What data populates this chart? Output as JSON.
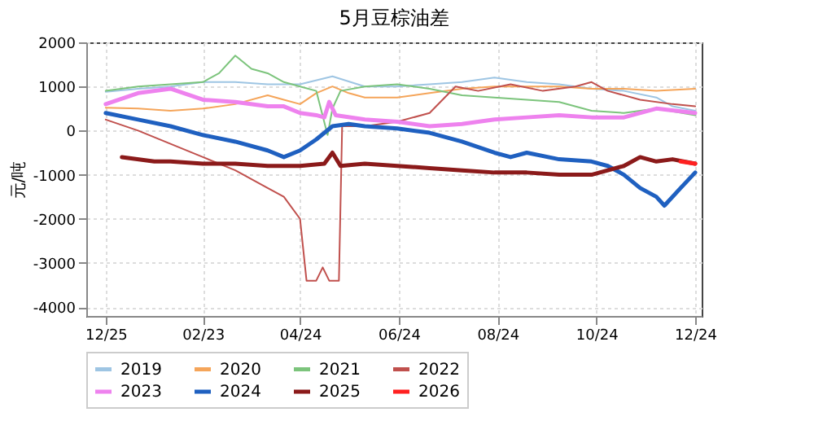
{
  "chart_data": {
    "type": "line",
    "title": "5月豆棕油差",
    "ylabel": "元/吨",
    "xlim": [
      "2024-12-13",
      "2025-12-28"
    ],
    "xticks": [
      {
        "value": "2024-12-25",
        "label": "12/25"
      },
      {
        "value": "2025-02-23",
        "label": "02/23"
      },
      {
        "value": "2025-04-24",
        "label": "04/24"
      },
      {
        "value": "2025-06-24",
        "label": "06/24"
      },
      {
        "value": "2025-08-24",
        "label": "08/24"
      },
      {
        "value": "2025-10-24",
        "label": "10/24"
      },
      {
        "value": "2025-12-24",
        "label": "12/24"
      }
    ],
    "ylim": [
      -4200,
      2000
    ],
    "yticks": [
      -4000,
      -3000,
      -2000,
      -1000,
      0,
      1000,
      2000
    ],
    "grid": true,
    "legend": "bottom",
    "line_style": "solid",
    "marker": "none",
    "series": [
      {
        "name": "2019",
        "color": "#9ec5e3",
        "x": [
          "2024-12-25",
          "2025-01-14",
          "2025-02-03",
          "2025-02-23",
          "2025-03-15",
          "2025-04-04",
          "2025-04-24",
          "2025-05-14",
          "2025-06-03",
          "2025-06-23",
          "2025-07-13",
          "2025-08-02",
          "2025-08-22",
          "2025-09-11",
          "2025-10-01",
          "2025-10-21",
          "2025-11-10",
          "2025-11-30",
          "2025-12-10",
          "2025-12-24"
        ],
        "values": [
          880,
          950,
          1000,
          1100,
          1100,
          1050,
          1050,
          1230,
          1000,
          1000,
          1050,
          1100,
          1200,
          1100,
          1050,
          950,
          900,
          750,
          550,
          450
        ]
      },
      {
        "name": "2020",
        "color": "#f5a55a",
        "x": [
          "2024-12-25",
          "2025-01-14",
          "2025-02-03",
          "2025-02-23",
          "2025-03-15",
          "2025-04-04",
          "2025-04-14",
          "2025-04-24",
          "2025-05-04",
          "2025-05-14",
          "2025-05-24",
          "2025-06-03",
          "2025-06-23",
          "2025-07-13",
          "2025-08-02",
          "2025-08-22",
          "2025-09-11",
          "2025-10-01",
          "2025-10-21",
          "2025-11-10",
          "2025-11-30",
          "2025-12-24"
        ],
        "values": [
          520,
          500,
          450,
          500,
          600,
          800,
          700,
          600,
          850,
          1000,
          850,
          750,
          750,
          850,
          950,
          1000,
          1000,
          1000,
          950,
          950,
          900,
          950
        ]
      },
      {
        "name": "2021",
        "color": "#7cc47c",
        "x": [
          "2024-12-25",
          "2025-01-14",
          "2025-02-03",
          "2025-02-23",
          "2025-03-05",
          "2025-03-15",
          "2025-03-25",
          "2025-04-04",
          "2025-04-14",
          "2025-04-24",
          "2025-05-04",
          "2025-05-11",
          "2025-05-14",
          "2025-05-19",
          "2025-06-03",
          "2025-06-23",
          "2025-07-13",
          "2025-08-02",
          "2025-08-22",
          "2025-09-11",
          "2025-10-01",
          "2025-10-21",
          "2025-11-10",
          "2025-11-30",
          "2025-12-24"
        ],
        "values": [
          900,
          1000,
          1050,
          1100,
          1300,
          1700,
          1400,
          1300,
          1100,
          1000,
          900,
          -100,
          500,
          900,
          1000,
          1050,
          950,
          800,
          750,
          700,
          650,
          450,
          400,
          500,
          350
        ]
      },
      {
        "name": "2022",
        "color": "#c0504d",
        "x": [
          "2024-12-25",
          "2025-01-14",
          "2025-02-03",
          "2025-02-23",
          "2025-03-15",
          "2025-04-04",
          "2025-04-14",
          "2025-04-24",
          "2025-04-28",
          "2025-05-04",
          "2025-05-08",
          "2025-05-12",
          "2025-05-18",
          "2025-05-20",
          "2025-06-03",
          "2025-06-23",
          "2025-07-13",
          "2025-07-29",
          "2025-08-12",
          "2025-09-01",
          "2025-09-21",
          "2025-10-11",
          "2025-10-21",
          "2025-10-31",
          "2025-11-20",
          "2025-12-10",
          "2025-12-24"
        ],
        "values": [
          250,
          0,
          -300,
          -600,
          -900,
          -1300,
          -1500,
          -2000,
          -3400,
          -3400,
          -3100,
          -3400,
          -3400,
          100,
          100,
          200,
          400,
          1000,
          900,
          1050,
          900,
          1000,
          1100,
          900,
          700,
          600,
          550
        ]
      },
      {
        "name": "2023",
        "color": "#ee82ee",
        "x": [
          "2024-12-25",
          "2025-01-14",
          "2025-02-03",
          "2025-02-23",
          "2025-03-15",
          "2025-04-04",
          "2025-04-14",
          "2025-04-24",
          "2025-05-04",
          "2025-05-09",
          "2025-05-12",
          "2025-05-16",
          "2025-06-03",
          "2025-06-23",
          "2025-07-13",
          "2025-08-02",
          "2025-08-22",
          "2025-09-11",
          "2025-10-01",
          "2025-10-21",
          "2025-11-10",
          "2025-11-30",
          "2025-12-24"
        ],
        "values": [
          600,
          850,
          950,
          700,
          650,
          550,
          550,
          400,
          350,
          300,
          650,
          350,
          250,
          200,
          100,
          150,
          250,
          300,
          350,
          300,
          300,
          500,
          400
        ]
      },
      {
        "name": "2024",
        "color": "#1f60c0",
        "x": [
          "2024-12-25",
          "2025-01-14",
          "2025-02-03",
          "2025-02-23",
          "2025-03-15",
          "2025-04-04",
          "2025-04-14",
          "2025-04-24",
          "2025-05-04",
          "2025-05-14",
          "2025-05-24",
          "2025-06-03",
          "2025-06-23",
          "2025-07-13",
          "2025-08-02",
          "2025-08-22",
          "2025-09-01",
          "2025-09-11",
          "2025-10-01",
          "2025-10-21",
          "2025-10-31",
          "2025-11-10",
          "2025-11-20",
          "2025-11-30",
          "2025-12-05",
          "2025-12-15",
          "2025-12-24"
        ],
        "values": [
          400,
          250,
          100,
          -100,
          -250,
          -450,
          -600,
          -450,
          -200,
          100,
          150,
          100,
          50,
          -50,
          -250,
          -500,
          -600,
          -500,
          -650,
          -700,
          -800,
          -1000,
          -1300,
          -1500,
          -1700,
          -1300,
          -950
        ]
      },
      {
        "name": "2025",
        "color": "#8b1a1a",
        "x": [
          "2025-01-04",
          "2025-01-24",
          "2025-02-03",
          "2025-02-23",
          "2025-03-15",
          "2025-04-04",
          "2025-04-24",
          "2025-05-09",
          "2025-05-14",
          "2025-05-19",
          "2025-06-03",
          "2025-06-23",
          "2025-07-13",
          "2025-08-02",
          "2025-08-22",
          "2025-09-11",
          "2025-10-01",
          "2025-10-21",
          "2025-11-10",
          "2025-11-20",
          "2025-11-30",
          "2025-12-10",
          "2025-12-24"
        ],
        "values": [
          -600,
          -700,
          -700,
          -750,
          -750,
          -800,
          -800,
          -750,
          -500,
          -800,
          -750,
          -800,
          -850,
          -900,
          -950,
          -950,
          -1000,
          -1000,
          -800,
          -600,
          -700,
          -650,
          -750
        ]
      },
      {
        "name": "2026",
        "color": "#ff2020",
        "x": [
          "2025-12-15",
          "2025-12-24"
        ],
        "values": [
          -700,
          -750
        ]
      }
    ]
  }
}
